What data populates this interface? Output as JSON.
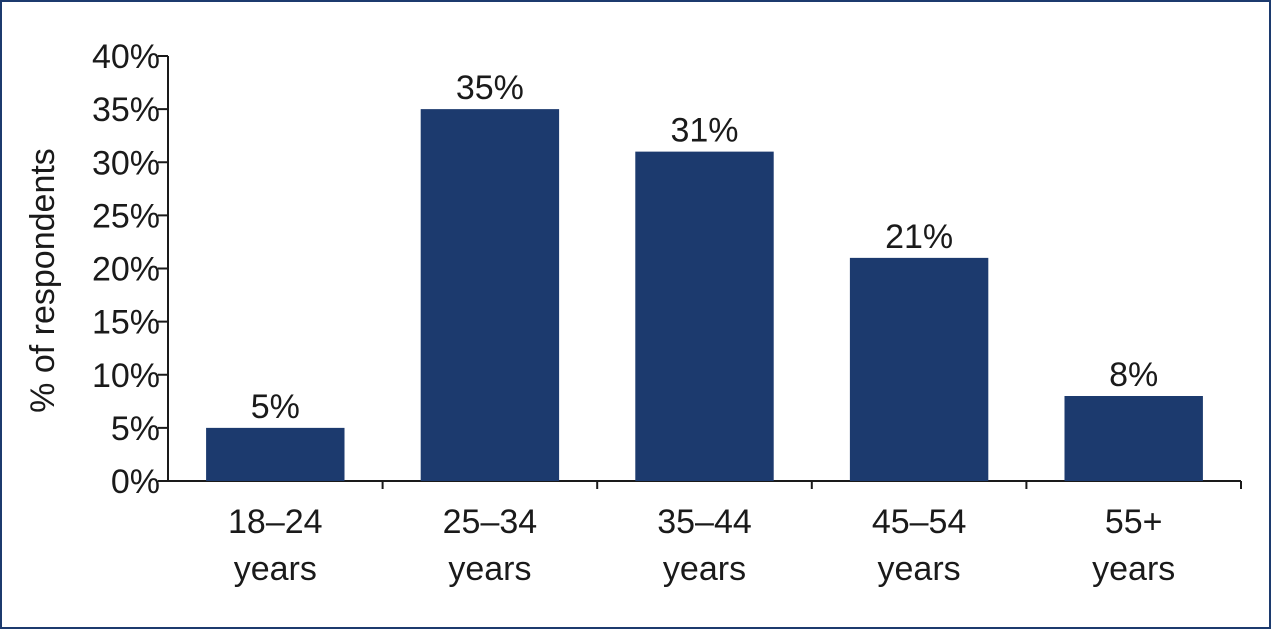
{
  "chart_data": {
    "type": "bar",
    "title": "",
    "xlabel": "",
    "ylabel": "% of respondents",
    "categories": [
      [
        "18–24",
        "years"
      ],
      [
        "25–34",
        "years"
      ],
      [
        "35–44",
        "years"
      ],
      [
        "45–54",
        "years"
      ],
      [
        "55+",
        "years"
      ]
    ],
    "values": [
      5,
      35,
      31,
      21,
      8
    ],
    "data_labels": [
      "5%",
      "35%",
      "31%",
      "21%",
      "8%"
    ],
    "ylim": [
      0,
      40
    ],
    "yticks": [
      0,
      5,
      10,
      15,
      20,
      25,
      30,
      35,
      40
    ],
    "ytick_labels": [
      "0%",
      "5%",
      "10%",
      "15%",
      "20%",
      "25%",
      "30%",
      "35%",
      "40%"
    ],
    "grid": false,
    "legend": "none",
    "bar_color": "#1c3a6e"
  }
}
